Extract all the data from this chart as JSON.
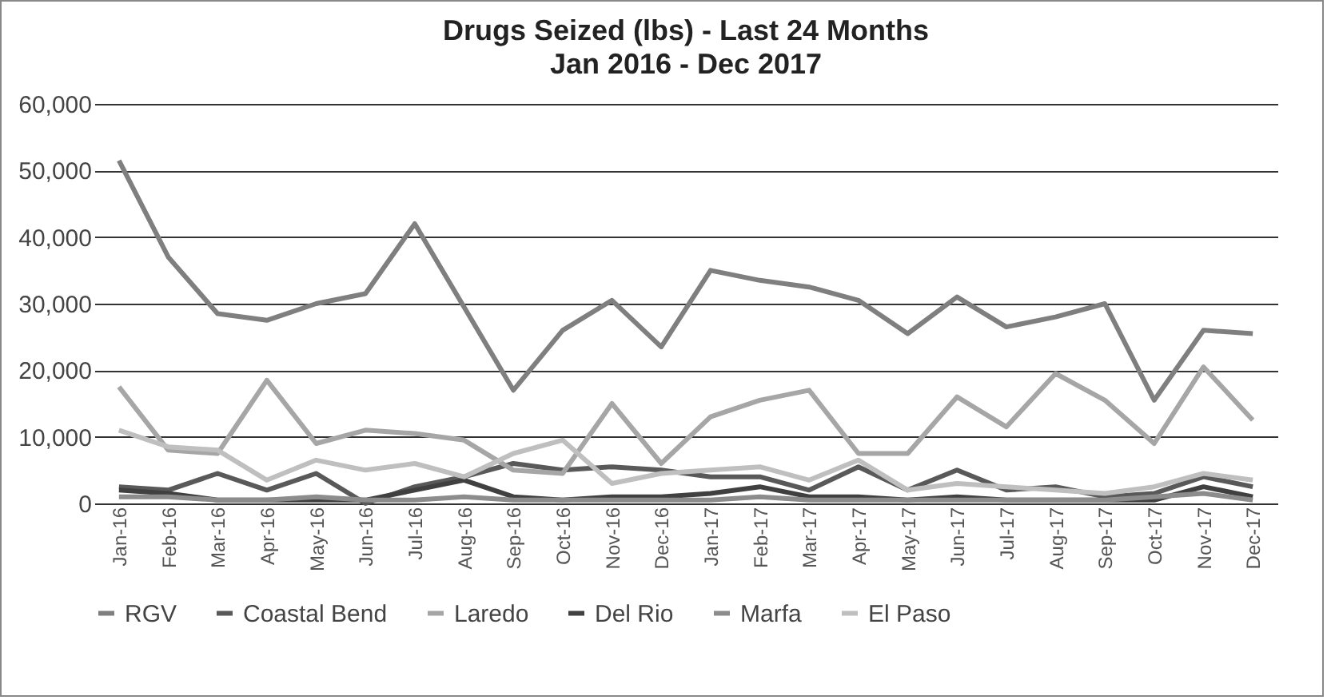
{
  "chart_data": {
    "type": "line",
    "title": "Drugs Seized (lbs) - Last 24 Months",
    "subtitle": "Jan 2016 - Dec 2017",
    "categories": [
      "Jan-16",
      "Feb-16",
      "Mar-16",
      "Apr-16",
      "May-16",
      "Jun-16",
      "Jul-16",
      "Aug-16",
      "Sep-16",
      "Oct-16",
      "Nov-16",
      "Dec-16",
      "Jan-17",
      "Feb-17",
      "Mar-17",
      "Apr-17",
      "May-17",
      "Jun-17",
      "Jul-17",
      "Aug-17",
      "Sep-17",
      "Oct-17",
      "Nov-17",
      "Dec-17"
    ],
    "series": [
      {
        "name": "RGV",
        "color": "#7f7f7f",
        "values": [
          51500,
          37000,
          28500,
          27500,
          30000,
          31500,
          42000,
          29500,
          17000,
          26000,
          30500,
          23500,
          35000,
          33500,
          32500,
          30500,
          25500,
          31000,
          26500,
          28000,
          30000,
          15500,
          26000,
          25500
        ]
      },
      {
        "name": "Coastal Bend",
        "color": "#595959",
        "values": [
          2500,
          2000,
          4500,
          2000,
          4500,
          0,
          2500,
          4000,
          6000,
          5000,
          5500,
          5000,
          4000,
          4000,
          2000,
          5500,
          2000,
          5000,
          2000,
          2500,
          1000,
          1500,
          4000,
          2500
        ]
      },
      {
        "name": "Laredo",
        "color": "#a6a6a6",
        "values": [
          17500,
          8000,
          7500,
          18500,
          9000,
          11000,
          10500,
          9500,
          5000,
          4500,
          15000,
          6000,
          13000,
          15500,
          17000,
          7500,
          7500,
          16000,
          11500,
          19500,
          15500,
          9000,
          20500,
          12500
        ]
      },
      {
        "name": "Del Rio",
        "color": "#404040",
        "values": [
          2000,
          1500,
          500,
          500,
          500,
          500,
          2000,
          3500,
          1000,
          500,
          1000,
          1000,
          1500,
          2500,
          1000,
          1000,
          500,
          1000,
          500,
          500,
          500,
          500,
          2500,
          1000
        ]
      },
      {
        "name": "Marfa",
        "color": "#8c8c8c",
        "values": [
          1000,
          1000,
          500,
          500,
          1000,
          500,
          500,
          1000,
          500,
          500,
          500,
          500,
          500,
          1000,
          500,
          500,
          500,
          500,
          500,
          500,
          500,
          1000,
          1500,
          500
        ]
      },
      {
        "name": "El Paso",
        "color": "#bfbfbf",
        "values": [
          11000,
          8500,
          8000,
          3500,
          6500,
          5000,
          6000,
          4000,
          7500,
          9500,
          3000,
          4500,
          5000,
          5500,
          3500,
          6500,
          2000,
          3000,
          2500,
          2000,
          1500,
          2500,
          4500,
          3500
        ]
      }
    ],
    "ylim": [
      0,
      60000
    ],
    "yticks": [
      0,
      {
        "value": 10000,
        "label": "10,000"
      },
      {
        "value": 20000,
        "label": "20,000"
      },
      {
        "value": 30000,
        "label": "30,000"
      },
      {
        "value": 40000,
        "label": "40,000"
      },
      {
        "value": 50000,
        "label": "50,000"
      },
      {
        "value": 60000,
        "label": "60,000"
      }
    ],
    "grid": "y",
    "legend": "bottom"
  }
}
